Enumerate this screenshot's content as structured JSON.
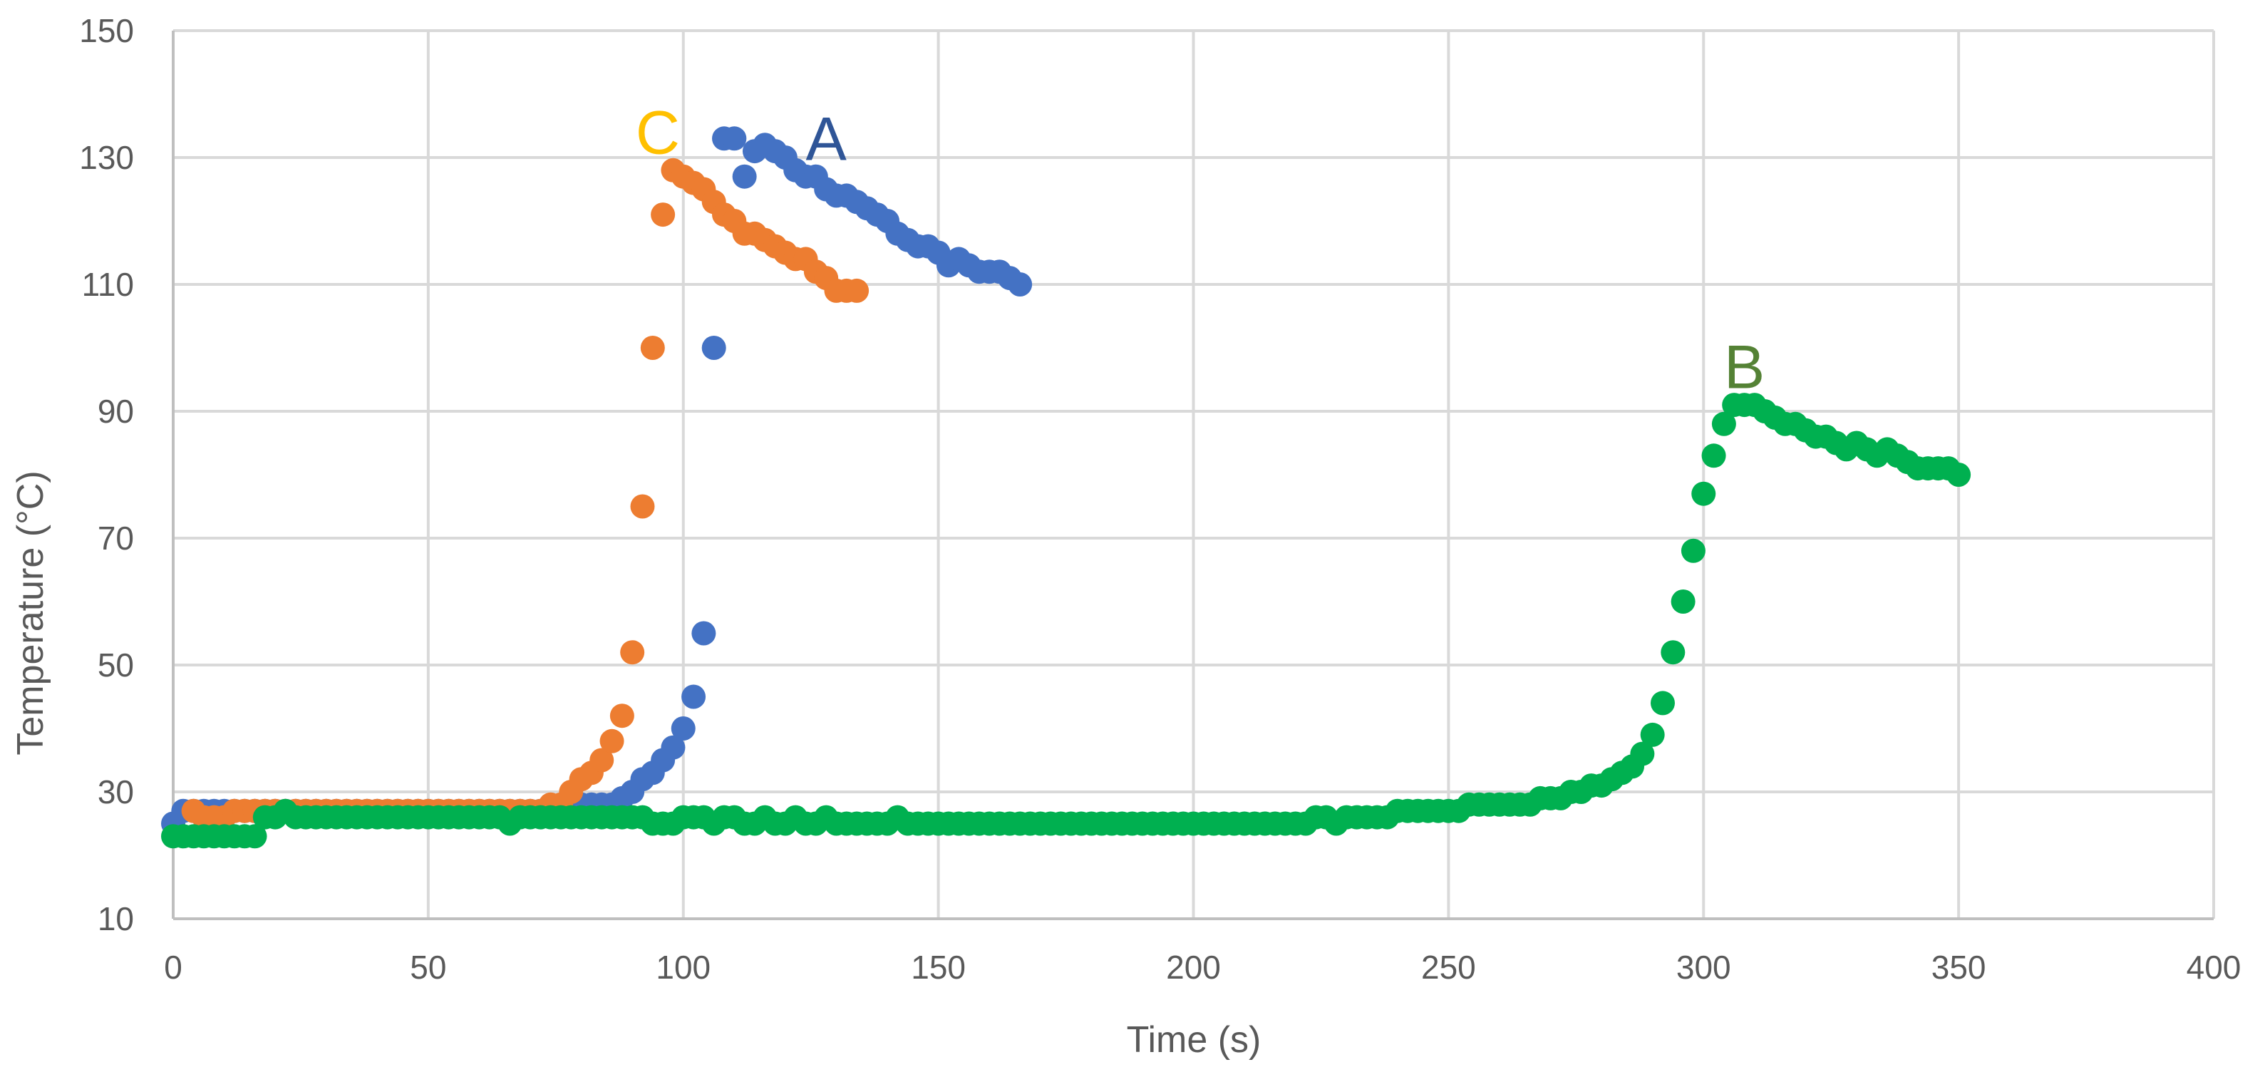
{
  "chart_data": {
    "type": "scatter",
    "title": "",
    "xlabel": "Time (s)",
    "ylabel": "Temperature (°C)",
    "xlim": [
      0,
      400
    ],
    "ylim": [
      10,
      150
    ],
    "xticks": [
      0,
      50,
      100,
      150,
      200,
      250,
      300,
      350,
      400
    ],
    "yticks": [
      10,
      30,
      50,
      70,
      90,
      110,
      130,
      150
    ],
    "grid": true,
    "legend": "none",
    "series": [
      {
        "name": "A",
        "label": "A",
        "color": "#4472C4",
        "label_color": "#2F5597",
        "label_pos": [
          128,
          133
        ],
        "points": [
          [
            0,
            25
          ],
          [
            2,
            27
          ],
          [
            4,
            27
          ],
          [
            6,
            27
          ],
          [
            8,
            27
          ],
          [
            10,
            27
          ],
          [
            12,
            27
          ],
          [
            14,
            27
          ],
          [
            16,
            27
          ],
          [
            18,
            27
          ],
          [
            20,
            27
          ],
          [
            22,
            27
          ],
          [
            24,
            27
          ],
          [
            26,
            27
          ],
          [
            28,
            27
          ],
          [
            30,
            27
          ],
          [
            32,
            27
          ],
          [
            34,
            27
          ],
          [
            36,
            27
          ],
          [
            38,
            27
          ],
          [
            40,
            27
          ],
          [
            42,
            27
          ],
          [
            44,
            27
          ],
          [
            46,
            27
          ],
          [
            48,
            27
          ],
          [
            50,
            27
          ],
          [
            52,
            27
          ],
          [
            54,
            27
          ],
          [
            56,
            27
          ],
          [
            58,
            27
          ],
          [
            60,
            27
          ],
          [
            62,
            27
          ],
          [
            64,
            27
          ],
          [
            66,
            27
          ],
          [
            68,
            27
          ],
          [
            70,
            27
          ],
          [
            72,
            27
          ],
          [
            74,
            27
          ],
          [
            76,
            27
          ],
          [
            78,
            27
          ],
          [
            80,
            28
          ],
          [
            82,
            28
          ],
          [
            84,
            28
          ],
          [
            86,
            28
          ],
          [
            88,
            29
          ],
          [
            90,
            30
          ],
          [
            92,
            32
          ],
          [
            94,
            33
          ],
          [
            96,
            35
          ],
          [
            98,
            37
          ],
          [
            100,
            40
          ],
          [
            102,
            45
          ],
          [
            104,
            55
          ],
          [
            106,
            100
          ],
          [
            108,
            133
          ],
          [
            110,
            133
          ],
          [
            112,
            127
          ],
          [
            114,
            131
          ],
          [
            116,
            132
          ],
          [
            118,
            131
          ],
          [
            120,
            130
          ],
          [
            122,
            128
          ],
          [
            124,
            127
          ],
          [
            126,
            127
          ],
          [
            128,
            125
          ],
          [
            130,
            124
          ],
          [
            132,
            124
          ],
          [
            134,
            123
          ],
          [
            136,
            122
          ],
          [
            138,
            121
          ],
          [
            140,
            120
          ],
          [
            142,
            118
          ],
          [
            144,
            117
          ],
          [
            146,
            116
          ],
          [
            148,
            116
          ],
          [
            150,
            115
          ],
          [
            152,
            113
          ],
          [
            154,
            114
          ],
          [
            156,
            113
          ],
          [
            158,
            112
          ],
          [
            160,
            112
          ],
          [
            162,
            112
          ],
          [
            164,
            111
          ],
          [
            166,
            110
          ]
        ]
      },
      {
        "name": "C",
        "label": "C",
        "color": "#ED7D31",
        "label_color": "#FFC000",
        "label_pos": [
          95,
          134
        ],
        "points": [
          [
            4,
            27
          ],
          [
            6,
            26
          ],
          [
            8,
            26
          ],
          [
            10,
            26
          ],
          [
            12,
            27
          ],
          [
            14,
            27
          ],
          [
            16,
            27
          ],
          [
            18,
            27
          ],
          [
            20,
            27
          ],
          [
            22,
            27
          ],
          [
            24,
            27
          ],
          [
            26,
            27
          ],
          [
            28,
            27
          ],
          [
            30,
            27
          ],
          [
            32,
            27
          ],
          [
            34,
            27
          ],
          [
            36,
            27
          ],
          [
            38,
            27
          ],
          [
            40,
            27
          ],
          [
            42,
            27
          ],
          [
            44,
            27
          ],
          [
            46,
            27
          ],
          [
            48,
            27
          ],
          [
            50,
            27
          ],
          [
            52,
            27
          ],
          [
            54,
            27
          ],
          [
            56,
            27
          ],
          [
            58,
            27
          ],
          [
            60,
            27
          ],
          [
            62,
            27
          ],
          [
            64,
            27
          ],
          [
            66,
            27
          ],
          [
            68,
            27
          ],
          [
            70,
            27
          ],
          [
            72,
            27
          ],
          [
            74,
            28
          ],
          [
            76,
            28
          ],
          [
            78,
            30
          ],
          [
            80,
            32
          ],
          [
            82,
            33
          ],
          [
            84,
            35
          ],
          [
            86,
            38
          ],
          [
            88,
            42
          ],
          [
            90,
            52
          ],
          [
            92,
            75
          ],
          [
            94,
            100
          ],
          [
            96,
            121
          ],
          [
            98,
            128
          ],
          [
            100,
            127
          ],
          [
            102,
            126
          ],
          [
            104,
            125
          ],
          [
            106,
            123
          ],
          [
            108,
            121
          ],
          [
            110,
            120
          ],
          [
            112,
            118
          ],
          [
            114,
            118
          ],
          [
            116,
            117
          ],
          [
            118,
            116
          ],
          [
            120,
            115
          ],
          [
            122,
            114
          ],
          [
            124,
            114
          ],
          [
            126,
            112
          ],
          [
            128,
            111
          ],
          [
            130,
            109
          ],
          [
            132,
            109
          ],
          [
            134,
            109
          ]
        ]
      },
      {
        "name": "B",
        "label": "B",
        "color": "#00B050",
        "label_color": "#548235",
        "label_pos": [
          308,
          97
        ],
        "points": [
          [
            0,
            23
          ],
          [
            2,
            23
          ],
          [
            4,
            23
          ],
          [
            6,
            23
          ],
          [
            8,
            23
          ],
          [
            10,
            23
          ],
          [
            12,
            23
          ],
          [
            14,
            23
          ],
          [
            16,
            23
          ],
          [
            18,
            26
          ],
          [
            20,
            26
          ],
          [
            22,
            27
          ],
          [
            24,
            26
          ],
          [
            26,
            26
          ],
          [
            28,
            26
          ],
          [
            30,
            26
          ],
          [
            32,
            26
          ],
          [
            34,
            26
          ],
          [
            36,
            26
          ],
          [
            38,
            26
          ],
          [
            40,
            26
          ],
          [
            42,
            26
          ],
          [
            44,
            26
          ],
          [
            46,
            26
          ],
          [
            48,
            26
          ],
          [
            50,
            26
          ],
          [
            52,
            26
          ],
          [
            54,
            26
          ],
          [
            56,
            26
          ],
          [
            58,
            26
          ],
          [
            60,
            26
          ],
          [
            62,
            26
          ],
          [
            64,
            26
          ],
          [
            66,
            25
          ],
          [
            68,
            26
          ],
          [
            70,
            26
          ],
          [
            72,
            26
          ],
          [
            74,
            26
          ],
          [
            76,
            26
          ],
          [
            78,
            26
          ],
          [
            80,
            26
          ],
          [
            82,
            26
          ],
          [
            84,
            26
          ],
          [
            86,
            26
          ],
          [
            88,
            26
          ],
          [
            90,
            26
          ],
          [
            92,
            26
          ],
          [
            94,
            25
          ],
          [
            96,
            25
          ],
          [
            98,
            25
          ],
          [
            100,
            26
          ],
          [
            102,
            26
          ],
          [
            104,
            26
          ],
          [
            106,
            25
          ],
          [
            108,
            26
          ],
          [
            110,
            26
          ],
          [
            112,
            25
          ],
          [
            114,
            25
          ],
          [
            116,
            26
          ],
          [
            118,
            25
          ],
          [
            120,
            25
          ],
          [
            122,
            26
          ],
          [
            124,
            25
          ],
          [
            126,
            25
          ],
          [
            128,
            26
          ],
          [
            130,
            25
          ],
          [
            132,
            25
          ],
          [
            134,
            25
          ],
          [
            136,
            25
          ],
          [
            138,
            25
          ],
          [
            140,
            25
          ],
          [
            142,
            26
          ],
          [
            144,
            25
          ],
          [
            146,
            25
          ],
          [
            148,
            25
          ],
          [
            150,
            25
          ],
          [
            152,
            25
          ],
          [
            154,
            25
          ],
          [
            156,
            25
          ],
          [
            158,
            25
          ],
          [
            160,
            25
          ],
          [
            162,
            25
          ],
          [
            164,
            25
          ],
          [
            166,
            25
          ],
          [
            168,
            25
          ],
          [
            170,
            25
          ],
          [
            172,
            25
          ],
          [
            174,
            25
          ],
          [
            176,
            25
          ],
          [
            178,
            25
          ],
          [
            180,
            25
          ],
          [
            182,
            25
          ],
          [
            184,
            25
          ],
          [
            186,
            25
          ],
          [
            188,
            25
          ],
          [
            190,
            25
          ],
          [
            192,
            25
          ],
          [
            194,
            25
          ],
          [
            196,
            25
          ],
          [
            198,
            25
          ],
          [
            200,
            25
          ],
          [
            202,
            25
          ],
          [
            204,
            25
          ],
          [
            206,
            25
          ],
          [
            208,
            25
          ],
          [
            210,
            25
          ],
          [
            212,
            25
          ],
          [
            214,
            25
          ],
          [
            216,
            25
          ],
          [
            218,
            25
          ],
          [
            220,
            25
          ],
          [
            222,
            25
          ],
          [
            224,
            26
          ],
          [
            226,
            26
          ],
          [
            228,
            25
          ],
          [
            230,
            26
          ],
          [
            232,
            26
          ],
          [
            234,
            26
          ],
          [
            236,
            26
          ],
          [
            238,
            26
          ],
          [
            240,
            27
          ],
          [
            242,
            27
          ],
          [
            244,
            27
          ],
          [
            246,
            27
          ],
          [
            248,
            27
          ],
          [
            250,
            27
          ],
          [
            252,
            27
          ],
          [
            254,
            28
          ],
          [
            256,
            28
          ],
          [
            258,
            28
          ],
          [
            260,
            28
          ],
          [
            262,
            28
          ],
          [
            264,
            28
          ],
          [
            266,
            28
          ],
          [
            268,
            29
          ],
          [
            270,
            29
          ],
          [
            272,
            29
          ],
          [
            274,
            30
          ],
          [
            276,
            30
          ],
          [
            278,
            31
          ],
          [
            280,
            31
          ],
          [
            282,
            32
          ],
          [
            284,
            33
          ],
          [
            286,
            34
          ],
          [
            288,
            36
          ],
          [
            290,
            39
          ],
          [
            292,
            44
          ],
          [
            294,
            52
          ],
          [
            296,
            60
          ],
          [
            298,
            68
          ],
          [
            300,
            77
          ],
          [
            302,
            83
          ],
          [
            304,
            88
          ],
          [
            306,
            91
          ],
          [
            308,
            91
          ],
          [
            310,
            91
          ],
          [
            312,
            90
          ],
          [
            314,
            89
          ],
          [
            316,
            88
          ],
          [
            318,
            88
          ],
          [
            320,
            87
          ],
          [
            322,
            86
          ],
          [
            324,
            86
          ],
          [
            326,
            85
          ],
          [
            328,
            84
          ],
          [
            330,
            85
          ],
          [
            332,
            84
          ],
          [
            334,
            83
          ],
          [
            336,
            84
          ],
          [
            338,
            83
          ],
          [
            340,
            82
          ],
          [
            342,
            81
          ],
          [
            344,
            81
          ],
          [
            346,
            81
          ],
          [
            348,
            81
          ],
          [
            350,
            80
          ]
        ]
      }
    ]
  }
}
